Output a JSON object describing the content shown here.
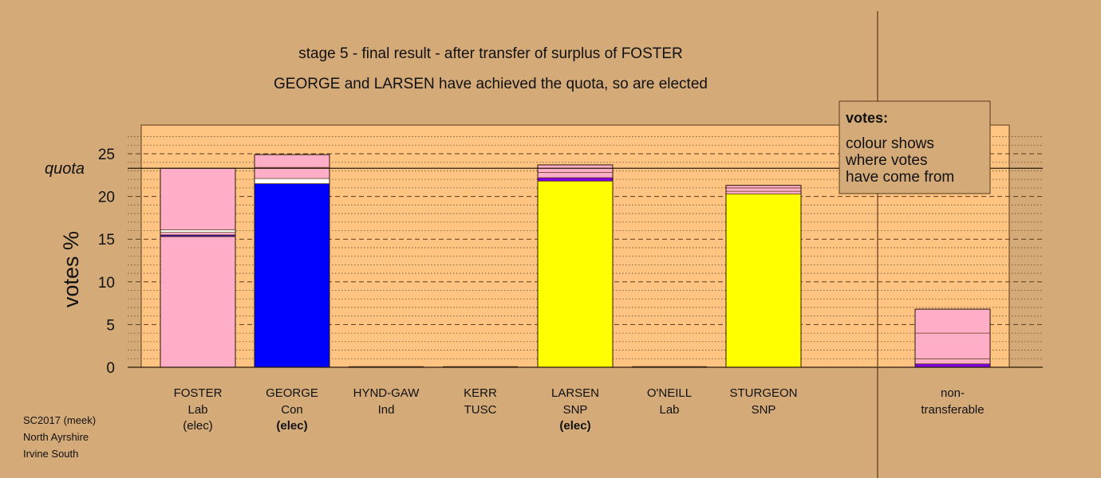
{
  "chart_data": {
    "type": "bar",
    "title": "stage 5 - final result - after transfer of surplus of FOSTER",
    "subtitle": "GEORGE and LARSEN have achieved the quota, so are elected",
    "ylabel": "votes %",
    "ylim": [
      0,
      27
    ],
    "yticks": [
      "0",
      "5",
      "10",
      "15",
      "20",
      "25"
    ],
    "quota": {
      "label": "quota",
      "value": 23.3
    },
    "grid": true,
    "categories": [
      {
        "name": "FOSTER",
        "party": "Lab",
        "status": "(elec)"
      },
      {
        "name": "GEORGE",
        "party": "Con",
        "status": "(elec)"
      },
      {
        "name": "HYND-GAW",
        "party": "Ind",
        "status": ""
      },
      {
        "name": "KERR",
        "party": "TUSC",
        "status": ""
      },
      {
        "name": "LARSEN",
        "party": "SNP",
        "status": "(elec)"
      },
      {
        "name": "O'NEILL",
        "party": "Lab",
        "status": ""
      },
      {
        "name": "STURGEON",
        "party": "SNP",
        "status": ""
      },
      {
        "name": "non-",
        "party": "transferable",
        "status": ""
      }
    ],
    "bars": [
      {
        "candidate": "FOSTER",
        "total": 23.3,
        "segments": [
          {
            "value": 15.3,
            "color": "#ffaec8"
          },
          {
            "value": 0.2,
            "color": "#3000b0"
          },
          {
            "value": 0.3,
            "color": "#ffaec8"
          },
          {
            "value": 0.3,
            "color": "#ffffff"
          },
          {
            "value": 7.2,
            "color": "#ffaec8"
          }
        ]
      },
      {
        "candidate": "GEORGE",
        "total": 24.9,
        "segments": [
          {
            "value": 21.5,
            "color": "#0000ff"
          },
          {
            "value": 0.6,
            "color": "#ffffff"
          },
          {
            "value": 1.3,
            "color": "#ffaec8"
          },
          {
            "value": 1.5,
            "color": "#ffaec8"
          }
        ]
      },
      {
        "candidate": "HYND-GAW",
        "total": 0,
        "segments": []
      },
      {
        "candidate": "KERR",
        "total": 0,
        "segments": []
      },
      {
        "candidate": "LARSEN",
        "total": 23.7,
        "segments": [
          {
            "value": 21.8,
            "color": "#ffff00"
          },
          {
            "value": 0.4,
            "color": "#8000e0"
          },
          {
            "value": 0.6,
            "color": "#ffaec8"
          },
          {
            "value": 0.5,
            "color": "#ffaec8"
          },
          {
            "value": 0.4,
            "color": "#ffaec8"
          }
        ]
      },
      {
        "candidate": "O'NEILL",
        "total": 0,
        "segments": []
      },
      {
        "candidate": "STURGEON",
        "total": 21.3,
        "segments": [
          {
            "value": 20.3,
            "color": "#ffff00"
          },
          {
            "value": 0.3,
            "color": "#ffaec8"
          },
          {
            "value": 0.4,
            "color": "#ffaec8"
          },
          {
            "value": 0.3,
            "color": "#ffaec8"
          }
        ]
      },
      {
        "candidate": "non-transferable",
        "total": 6.8,
        "segments": [
          {
            "value": 0.4,
            "color": "#8000e0"
          },
          {
            "value": 0.6,
            "color": "#ffaec8"
          },
          {
            "value": 3.0,
            "color": "#ffaec8"
          },
          {
            "value": 2.8,
            "color": "#ffaec8"
          }
        ]
      }
    ],
    "legend": {
      "position": "top-right",
      "title": "votes:",
      "lines": [
        "colour shows",
        "where votes",
        "have come from"
      ]
    }
  },
  "credit": [
    "SC2017 (meek)",
    "North Ayrshire",
    "Irvine South"
  ],
  "colors": {
    "background": "#d4aa78",
    "plot_area": "#ffc482",
    "outline": "#5a3a1a"
  }
}
